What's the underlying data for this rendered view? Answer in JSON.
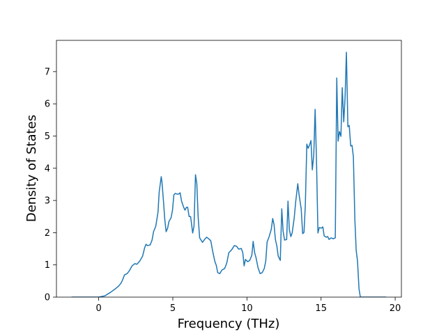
{
  "chart_data": {
    "type": "line",
    "xlabel": "Frequency (THz)",
    "ylabel": "Density of States",
    "xlim": [
      -2.85,
      20.42
    ],
    "ylim": [
      0,
      7.97
    ],
    "xticks": [
      0,
      5,
      10,
      15,
      20
    ],
    "yticks": [
      0,
      1,
      2,
      3,
      4,
      5,
      6,
      7
    ],
    "grid": false,
    "series": [
      {
        "color": "#1f77b4",
        "x": [
          -1.83,
          -0.5,
          0,
          0.42,
          0.8,
          1.13,
          1.36,
          1.5,
          1.6,
          1.74,
          1.92,
          2.07,
          2.25,
          2.44,
          2.58,
          2.77,
          2.96,
          3.1,
          3.19,
          3.29,
          3.47,
          3.6,
          3.7,
          3.85,
          4.0,
          4.08,
          4.22,
          4.27,
          4.37,
          4.46,
          4.55,
          4.65,
          4.74,
          4.88,
          4.98,
          5.07,
          5.16,
          5.26,
          5.4,
          5.49,
          5.59,
          5.73,
          5.82,
          5.92,
          6.0,
          6.1,
          6.2,
          6.34,
          6.43,
          6.53,
          6.62,
          6.71,
          6.81,
          7.0,
          7.14,
          7.28,
          7.42,
          7.56,
          7.7,
          7.84,
          7.93,
          8.03,
          8.17,
          8.31,
          8.5,
          8.64,
          8.78,
          8.97,
          9.15,
          9.3,
          9.44,
          9.62,
          9.72,
          9.81,
          9.9,
          10.05,
          10.19,
          10.33,
          10.42,
          10.52,
          10.61,
          10.75,
          10.89,
          11.03,
          11.17,
          11.27,
          11.36,
          11.5,
          11.64,
          11.74,
          11.83,
          11.92,
          12.02,
          12.11,
          12.25,
          12.35,
          12.44,
          12.54,
          12.68,
          12.77,
          12.86,
          12.96,
          13.05,
          13.19,
          13.29,
          13.43,
          13.52,
          13.66,
          13.76,
          13.85,
          13.94,
          14.04,
          14.13,
          14.23,
          14.32,
          14.41,
          14.51,
          14.6,
          14.69,
          14.79,
          14.88,
          15.02,
          15.12,
          15.21,
          15.35,
          15.45,
          15.54,
          15.68,
          15.82,
          15.96,
          16.06,
          16.15,
          16.24,
          16.34,
          16.43,
          16.53,
          16.62,
          16.71,
          16.81,
          16.9,
          17.0,
          17.09,
          17.18,
          17.28,
          17.37,
          17.46,
          17.56,
          17.65,
          18.26,
          19.39
        ],
        "values": [
          0,
          0,
          0,
          0.04,
          0.15,
          0.26,
          0.35,
          0.43,
          0.52,
          0.69,
          0.73,
          0.82,
          0.97,
          1.04,
          1.02,
          1.12,
          1.27,
          1.53,
          1.64,
          1.6,
          1.62,
          1.77,
          2.03,
          2.2,
          2.63,
          3.26,
          3.74,
          3.56,
          2.98,
          2.4,
          2.03,
          2.14,
          2.35,
          2.46,
          2.7,
          3.17,
          3.22,
          3.2,
          3.2,
          3.24,
          2.98,
          2.79,
          2.7,
          2.79,
          2.79,
          2.5,
          2.5,
          1.99,
          2.2,
          3.8,
          3.52,
          2.48,
          1.84,
          1.7,
          1.79,
          1.86,
          1.81,
          1.75,
          1.4,
          1.1,
          0.99,
          0.76,
          0.73,
          0.84,
          0.89,
          1.06,
          1.38,
          1.47,
          1.6,
          1.58,
          1.49,
          1.51,
          1.38,
          0.97,
          1.17,
          1.1,
          1.14,
          1.3,
          1.73,
          1.38,
          1.23,
          0.91,
          0.73,
          0.76,
          0.89,
          1.12,
          1.71,
          1.88,
          2.1,
          2.44,
          2.25,
          1.79,
          1.58,
          1.27,
          1.14,
          2.74,
          2.05,
          1.77,
          1.79,
          2.98,
          2.1,
          1.88,
          1.99,
          2.46,
          2.96,
          3.52,
          3.17,
          2.74,
          1.97,
          2.01,
          2.87,
          4.75,
          4.62,
          4.73,
          4.86,
          3.95,
          4.43,
          5.83,
          4.3,
          1.99,
          2.16,
          2.14,
          2.18,
          1.9,
          1.86,
          1.88,
          1.79,
          1.84,
          1.81,
          1.84,
          6.8,
          4.84,
          5.14,
          4.99,
          6.5,
          5.44,
          6.2,
          7.6,
          5.29,
          5.33,
          4.69,
          4.71,
          4.36,
          2.42,
          1.45,
          1.12,
          0.26,
          0,
          0,
          0
        ]
      }
    ]
  }
}
